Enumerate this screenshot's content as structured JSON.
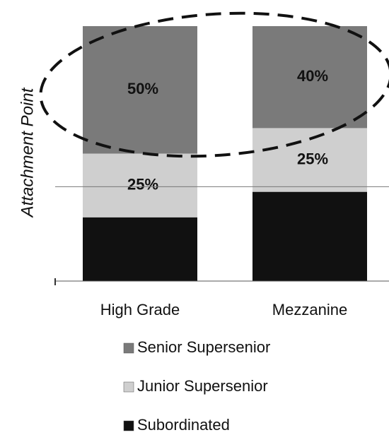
{
  "chart_data": {
    "type": "stacked_bar",
    "y_label": "Attachment Point",
    "categories": [
      "High Grade",
      "Mezzanine"
    ],
    "series": [
      {
        "name": "Senior Supersenior",
        "color": "#7a7a7a",
        "values": [
          50,
          40
        ],
        "value_labels": [
          "50%",
          "40%"
        ]
      },
      {
        "name": "Junior Supersenior",
        "color": "#cfcfcf",
        "values": [
          25,
          25
        ],
        "value_labels": [
          "25%",
          "25%"
        ]
      },
      {
        "name": "Subordinated",
        "color": "#111111",
        "values": [
          25,
          35
        ]
      }
    ],
    "ylim": [
      0,
      100
    ],
    "reference_line": 37,
    "legend": "bottom"
  }
}
